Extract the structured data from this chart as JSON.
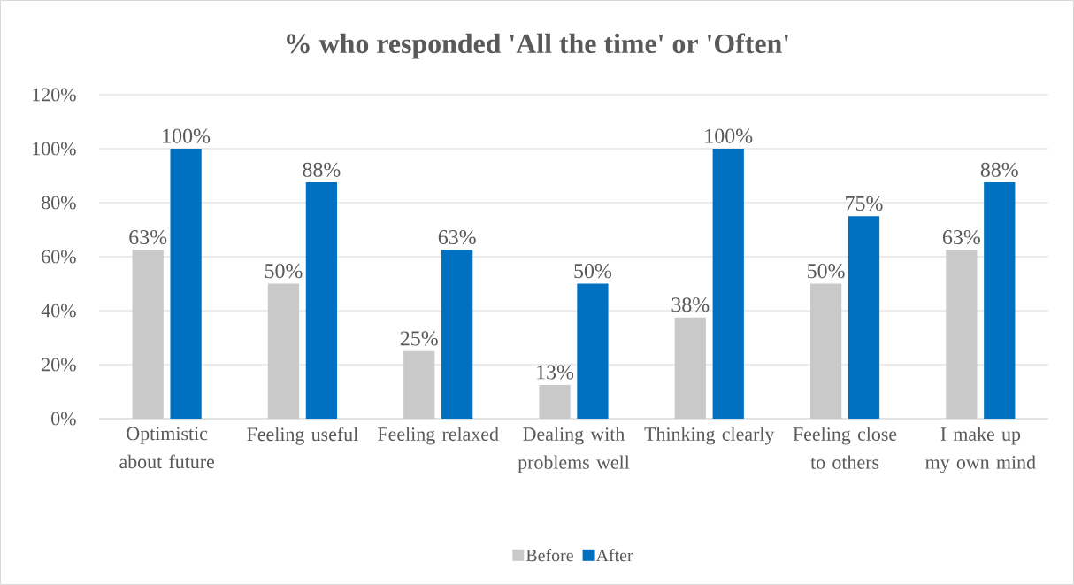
{
  "chart_data": {
    "type": "bar",
    "title": "% who responded 'All the time' or 'Often'",
    "categories": [
      "Optimistic about future",
      "Feeling useful",
      "Feeling relaxed",
      "Dealing with problems well",
      "Thinking clearly",
      "Feeling close to others",
      "I make up my own mind"
    ],
    "series": [
      {
        "name": "Before",
        "color": "#c9c9c9",
        "values": [
          62.5,
          50,
          25,
          12.5,
          37.5,
          50,
          62.5
        ],
        "value_labels": [
          "63%",
          "50%",
          "25%",
          "13%",
          "38%",
          "50%",
          "63%"
        ]
      },
      {
        "name": "After",
        "color": "#0070c0",
        "values": [
          100,
          87.5,
          62.5,
          50,
          100,
          75,
          87.5
        ],
        "value_labels": [
          "100%",
          "88%",
          "63%",
          "50%",
          "100%",
          "75%",
          "88%"
        ]
      }
    ],
    "ylim": [
      0,
      120
    ],
    "yticks": [
      {
        "value": 0,
        "label": "0%"
      },
      {
        "value": 20,
        "label": "20%"
      },
      {
        "value": 40,
        "label": "40%"
      },
      {
        "value": 60,
        "label": "60%"
      },
      {
        "value": 80,
        "label": "80%"
      },
      {
        "value": 100,
        "label": "100%"
      },
      {
        "value": 120,
        "label": "120%"
      }
    ],
    "grid": "y",
    "legend": "bottom"
  }
}
